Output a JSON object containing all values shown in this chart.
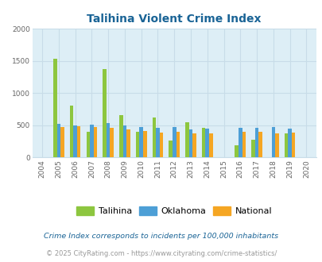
{
  "title": "Talihina Violent Crime Index",
  "years": [
    2004,
    2005,
    2006,
    2007,
    2008,
    2009,
    2010,
    2011,
    2012,
    2013,
    2014,
    2015,
    2016,
    2017,
    2018,
    2019,
    2020
  ],
  "talihina": [
    0,
    1535,
    800,
    400,
    1375,
    650,
    400,
    620,
    265,
    545,
    455,
    0,
    185,
    270,
    0,
    365,
    0
  ],
  "oklahoma": [
    0,
    520,
    500,
    505,
    530,
    500,
    475,
    455,
    470,
    430,
    445,
    0,
    455,
    455,
    465,
    440,
    0
  ],
  "national": [
    0,
    475,
    480,
    475,
    460,
    430,
    405,
    385,
    390,
    370,
    375,
    0,
    400,
    400,
    375,
    380,
    0
  ],
  "talihina_color": "#8dc63f",
  "oklahoma_color": "#4d9fd6",
  "national_color": "#f5a623",
  "bg_color": "#ddeef6",
  "plot_bg_color": "#ddeef6",
  "grid_color": "#c8dce8",
  "ylim": [
    0,
    2000
  ],
  "footnote1": "Crime Index corresponds to incidents per 100,000 inhabitants",
  "footnote2": "© 2025 CityRating.com - https://www.cityrating.com/crime-statistics/",
  "legend_labels": [
    "Talihina",
    "Oklahoma",
    "National"
  ],
  "title_color": "#1a6496",
  "footnote1_color": "#1a6496",
  "footnote2_color": "#999999"
}
